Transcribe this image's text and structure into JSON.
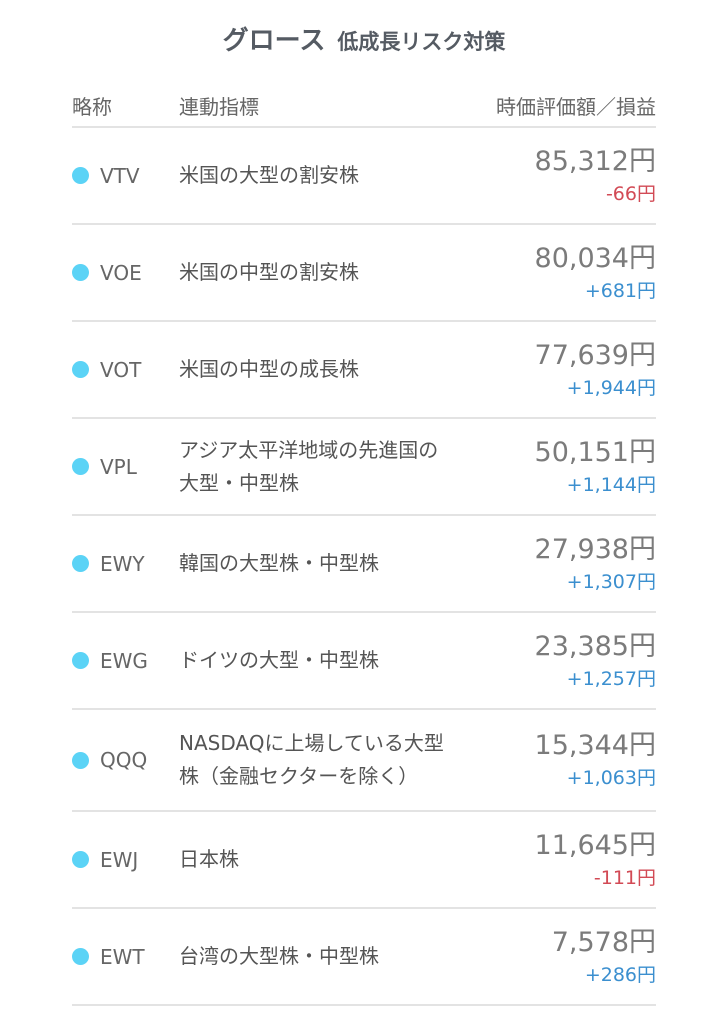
{
  "title": {
    "main": "グロース",
    "sub": "低成長リスク対策"
  },
  "columns": {
    "ticker": "略称",
    "index": "連動指標",
    "value": "時価評価額／損益"
  },
  "colors": {
    "dot": "#5bd3f6",
    "positive": "#3b8fcf",
    "negative": "#d24a55"
  },
  "rows": [
    {
      "ticker": "VTV",
      "index": "米国の大型の割安株",
      "value": "85,312円",
      "pl": "-66円",
      "sign": "neg"
    },
    {
      "ticker": "VOE",
      "index": "米国の中型の割安株",
      "value": "80,034円",
      "pl": "+681円",
      "sign": "pos"
    },
    {
      "ticker": "VOT",
      "index": "米国の中型の成長株",
      "value": "77,639円",
      "pl": "+1,944円",
      "sign": "pos"
    },
    {
      "ticker": "VPL",
      "index": "アジア太平洋地域の先進国の大型・中型株",
      "value": "50,151円",
      "pl": "+1,144円",
      "sign": "pos"
    },
    {
      "ticker": "EWY",
      "index": "韓国の大型株・中型株",
      "value": "27,938円",
      "pl": "+1,307円",
      "sign": "pos"
    },
    {
      "ticker": "EWG",
      "index": "ドイツの大型・中型株",
      "value": "23,385円",
      "pl": "+1,257円",
      "sign": "pos"
    },
    {
      "ticker": "QQQ",
      "index": "NASDAQに上場している大型株（金融セクターを除く）",
      "value": "15,344円",
      "pl": "+1,063円",
      "sign": "pos"
    },
    {
      "ticker": "EWJ",
      "index": "日本株",
      "value": "11,645円",
      "pl": "-111円",
      "sign": "neg"
    },
    {
      "ticker": "EWT",
      "index": "台湾の大型株・中型株",
      "value": "7,578円",
      "pl": "+286円",
      "sign": "pos"
    }
  ]
}
